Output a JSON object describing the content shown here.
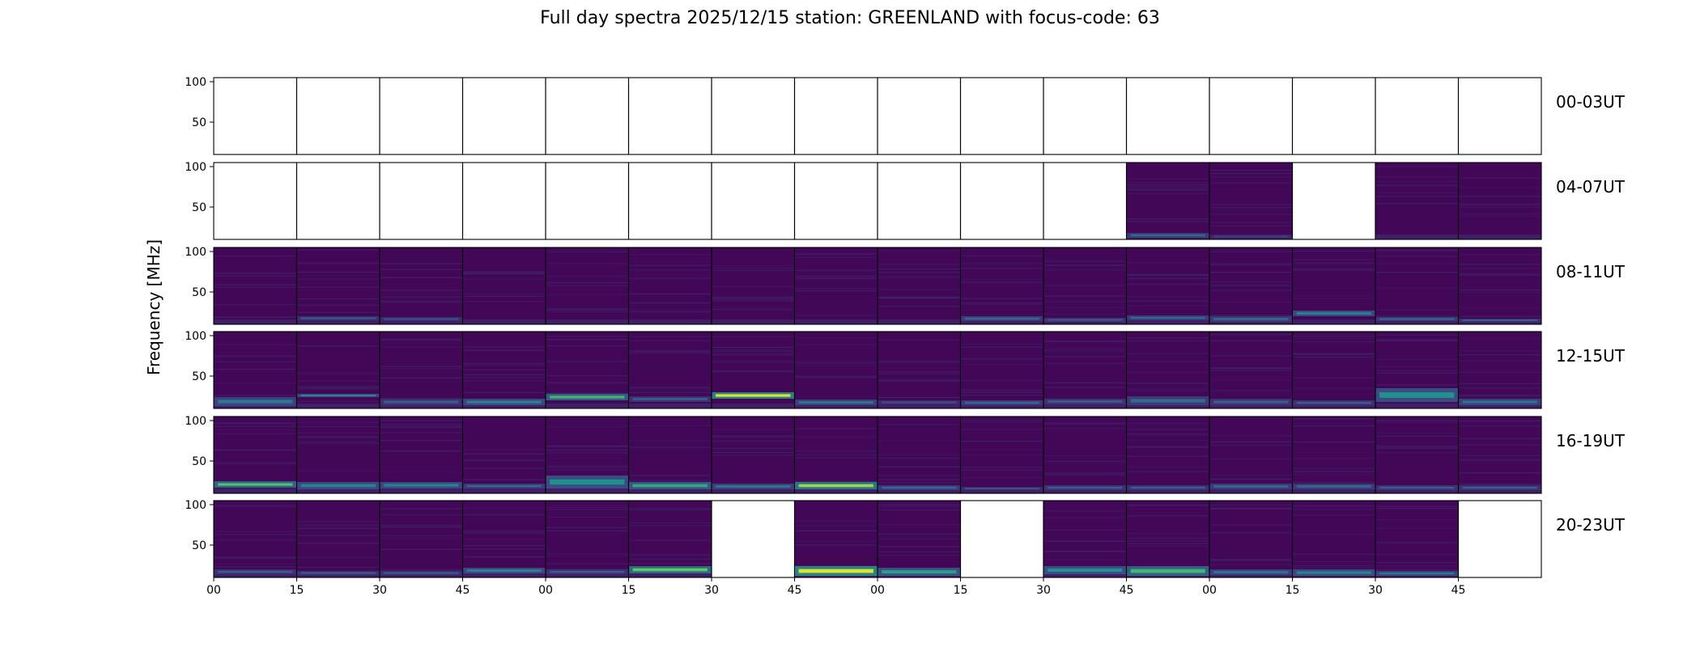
{
  "chart_data": {
    "type": "heatmap",
    "title": "Full day spectra 2025/12/15 station: GREENLAND with focus-code: 63",
    "ylabel": "Frequency [MHz]",
    "xlabel": "",
    "ylim": [
      10,
      105
    ],
    "ytick_labels": [
      "100",
      "50"
    ],
    "ytick_values": [
      100,
      50
    ],
    "xtick_labels": [
      "00",
      "15",
      "30",
      "45",
      "00",
      "15",
      "30",
      "45",
      "00",
      "15",
      "30",
      "45",
      "00",
      "15",
      "30",
      "45"
    ],
    "panels_per_row": 16,
    "minutes_per_panel": 15,
    "colormap": [
      "#440154",
      "#3b528b",
      "#21918c",
      "#5ec962",
      "#fde725"
    ],
    "rows": [
      {
        "label": "00-03UT",
        "filled": [
          0,
          0,
          0,
          0,
          0,
          0,
          0,
          0,
          0,
          0,
          0,
          0,
          0,
          0,
          0,
          0
        ],
        "bands": []
      },
      {
        "label": "04-07UT",
        "filled": [
          0,
          0,
          0,
          0,
          0,
          0,
          0,
          0,
          0,
          0,
          0,
          1,
          1,
          0,
          1,
          1
        ],
        "bands": [
          {
            "panel": 11,
            "fmin": 12,
            "fmax": 18,
            "level": 0.35
          },
          {
            "panel": 12,
            "fmin": 11,
            "fmax": 16,
            "level": 0.2
          }
        ]
      },
      {
        "label": "08-11UT",
        "filled": [
          1,
          1,
          1,
          1,
          1,
          1,
          1,
          1,
          1,
          1,
          1,
          1,
          1,
          1,
          1,
          1
        ],
        "bands": [
          {
            "panel": 1,
            "fmin": 15,
            "fmax": 20,
            "level": 0.3
          },
          {
            "panel": 2,
            "fmin": 14,
            "fmax": 19,
            "level": 0.25
          },
          {
            "panel": 9,
            "fmin": 14,
            "fmax": 20,
            "level": 0.35
          },
          {
            "panel": 10,
            "fmin": 13,
            "fmax": 18,
            "level": 0.3
          },
          {
            "panel": 11,
            "fmin": 15,
            "fmax": 21,
            "level": 0.35
          },
          {
            "panel": 12,
            "fmin": 13,
            "fmax": 20,
            "level": 0.35
          },
          {
            "panel": 13,
            "fmin": 20,
            "fmax": 27,
            "level": 0.45
          },
          {
            "panel": 14,
            "fmin": 14,
            "fmax": 19,
            "level": 0.35
          },
          {
            "panel": 15,
            "fmin": 13,
            "fmax": 17,
            "level": 0.3
          }
        ]
      },
      {
        "label": "12-15UT",
        "filled": [
          1,
          1,
          1,
          1,
          1,
          1,
          1,
          1,
          1,
          1,
          1,
          1,
          1,
          1,
          1,
          1
        ],
        "bands": [
          {
            "panel": 0,
            "fmin": 13,
            "fmax": 24,
            "level": 0.4
          },
          {
            "panel": 1,
            "fmin": 24,
            "fmax": 28,
            "level": 0.45
          },
          {
            "panel": 2,
            "fmin": 14,
            "fmax": 22,
            "level": 0.3
          },
          {
            "panel": 3,
            "fmin": 14,
            "fmax": 22,
            "level": 0.45
          },
          {
            "panel": 4,
            "fmin": 20,
            "fmax": 28,
            "level": 0.65
          },
          {
            "panel": 5,
            "fmin": 18,
            "fmax": 25,
            "level": 0.3
          },
          {
            "panel": 6,
            "fmin": 22,
            "fmax": 30,
            "level": 0.95
          },
          {
            "panel": 7,
            "fmin": 14,
            "fmax": 21,
            "level": 0.4
          },
          {
            "panel": 8,
            "fmin": 15,
            "fmax": 20,
            "level": 0.25
          },
          {
            "panel": 9,
            "fmin": 14,
            "fmax": 20,
            "level": 0.35
          },
          {
            "panel": 10,
            "fmin": 15,
            "fmax": 22,
            "level": 0.3
          },
          {
            "panel": 11,
            "fmin": 14,
            "fmax": 25,
            "level": 0.35
          },
          {
            "panel": 12,
            "fmin": 14,
            "fmax": 22,
            "level": 0.3
          },
          {
            "panel": 13,
            "fmin": 14,
            "fmax": 20,
            "level": 0.3
          },
          {
            "panel": 14,
            "fmin": 18,
            "fmax": 35,
            "level": 0.5
          },
          {
            "panel": 15,
            "fmin": 14,
            "fmax": 22,
            "level": 0.4
          }
        ]
      },
      {
        "label": "16-19UT",
        "filled": [
          1,
          1,
          1,
          1,
          1,
          1,
          1,
          1,
          1,
          1,
          1,
          1,
          1,
          1,
          1,
          1
        ],
        "bands": [
          {
            "panel": 0,
            "fmin": 17,
            "fmax": 25,
            "level": 0.7
          },
          {
            "panel": 1,
            "fmin": 15,
            "fmax": 24,
            "level": 0.45
          },
          {
            "panel": 2,
            "fmin": 16,
            "fmax": 24,
            "level": 0.45
          },
          {
            "panel": 3,
            "fmin": 16,
            "fmax": 22,
            "level": 0.35
          },
          {
            "panel": 4,
            "fmin": 16,
            "fmax": 32,
            "level": 0.5
          },
          {
            "panel": 5,
            "fmin": 15,
            "fmax": 24,
            "level": 0.6
          },
          {
            "panel": 6,
            "fmin": 15,
            "fmax": 22,
            "level": 0.4
          },
          {
            "panel": 7,
            "fmin": 15,
            "fmax": 24,
            "level": 0.85
          },
          {
            "panel": 8,
            "fmin": 14,
            "fmax": 20,
            "level": 0.35
          },
          {
            "panel": 9,
            "fmin": 14,
            "fmax": 18,
            "level": 0.25
          },
          {
            "panel": 10,
            "fmin": 14,
            "fmax": 20,
            "level": 0.3
          },
          {
            "panel": 11,
            "fmin": 14,
            "fmax": 20,
            "level": 0.3
          },
          {
            "panel": 12,
            "fmin": 15,
            "fmax": 22,
            "level": 0.35
          },
          {
            "panel": 13,
            "fmin": 15,
            "fmax": 22,
            "level": 0.35
          },
          {
            "panel": 14,
            "fmin": 14,
            "fmax": 20,
            "level": 0.3
          },
          {
            "panel": 15,
            "fmin": 14,
            "fmax": 20,
            "level": 0.3
          }
        ]
      },
      {
        "label": "20-23UT",
        "filled": [
          1,
          1,
          1,
          1,
          1,
          1,
          0,
          1,
          1,
          0,
          1,
          1,
          1,
          1,
          1,
          0
        ],
        "bands": [
          {
            "panel": 0,
            "fmin": 14,
            "fmax": 20,
            "level": 0.3
          },
          {
            "panel": 1,
            "fmin": 13,
            "fmax": 18,
            "level": 0.3
          },
          {
            "panel": 2,
            "fmin": 13,
            "fmax": 18,
            "level": 0.3
          },
          {
            "panel": 3,
            "fmin": 15,
            "fmax": 22,
            "level": 0.45
          },
          {
            "panel": 4,
            "fmin": 14,
            "fmax": 20,
            "level": 0.3
          },
          {
            "panel": 5,
            "fmin": 15,
            "fmax": 24,
            "level": 0.75
          },
          {
            "panel": 7,
            "fmin": 12,
            "fmax": 24,
            "level": 0.95
          },
          {
            "panel": 8,
            "fmin": 12,
            "fmax": 22,
            "level": 0.55
          },
          {
            "panel": 10,
            "fmin": 14,
            "fmax": 24,
            "level": 0.5
          },
          {
            "panel": 11,
            "fmin": 12,
            "fmax": 24,
            "level": 0.65
          },
          {
            "panel": 12,
            "fmin": 13,
            "fmax": 20,
            "level": 0.4
          },
          {
            "panel": 13,
            "fmin": 12,
            "fmax": 20,
            "level": 0.45
          },
          {
            "panel": 14,
            "fmin": 12,
            "fmax": 18,
            "level": 0.4
          }
        ]
      }
    ]
  }
}
